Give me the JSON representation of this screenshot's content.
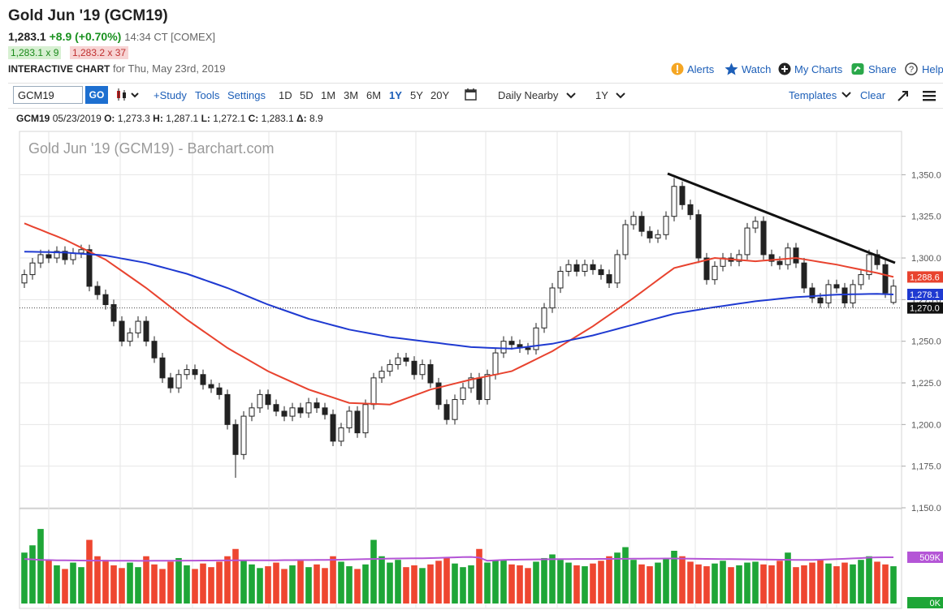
{
  "header": {
    "title": "Gold Jun '19 (GCM19)",
    "last": "1,283.1",
    "change": "+8.9 (+0.70%)",
    "time": "14:34 CT [COMEX]",
    "bid": "1,283.1 x 9",
    "ask": "1,283.2 x 37",
    "chart_label": "INTERACTIVE CHART",
    "date": "for Thu, May 23rd, 2019",
    "links": [
      "Alerts",
      "Watch",
      "My Charts",
      "Share",
      "Help"
    ]
  },
  "toolbar": {
    "symbol": "GCM19",
    "go": "GO",
    "study": "+Study",
    "tools": "Tools",
    "settings": "Settings",
    "ranges": [
      "1D",
      "5D",
      "1M",
      "3M",
      "6M",
      "1Y",
      "5Y",
      "20Y"
    ],
    "aggregation": "Daily Nearby",
    "period": "1Y",
    "templates": "Templates",
    "clear": "Clear"
  },
  "ohlc_bar": {
    "symbol": "GCM19",
    "date": "05/23/2019",
    "items": [
      {
        "key": "O:",
        "value": "1,273.3"
      },
      {
        "key": "H:",
        "value": "1,287.1"
      },
      {
        "key": "L:",
        "value": "1,272.1"
      },
      {
        "key": "C:",
        "value": "1,283.1"
      },
      {
        "key": "Δ:",
        "value": "8.9"
      }
    ]
  },
  "chart_data": {
    "type": "candlestick",
    "title": "Gold Jun '19 (GCM19) - Barchart.com",
    "open": [
      1285,
      1290,
      1297,
      1302,
      1300,
      1304,
      1299,
      1303,
      1305,
      1283,
      1278,
      1272,
      1262,
      1250,
      1255,
      1262,
      1250,
      1240,
      1228,
      1222,
      1230,
      1233,
      1230,
      1224,
      1222,
      1218,
      1200,
      1182,
      1205,
      1210,
      1218,
      1212,
      1208,
      1205,
      1210,
      1207,
      1213,
      1210,
      1206,
      1190,
      1198,
      1208,
      1195,
      1212,
      1228,
      1232,
      1236,
      1240,
      1238,
      1230,
      1236,
      1225,
      1212,
      1203,
      1215,
      1222,
      1228,
      1215,
      1230,
      1243,
      1250,
      1248,
      1246,
      1245,
      1258,
      1270,
      1282,
      1292,
      1296,
      1292,
      1296,
      1293,
      1290,
      1285,
      1302,
      1320,
      1325,
      1316,
      1312,
      1314,
      1325,
      1343,
      1332,
      1326,
      1300,
      1287,
      1295,
      1300,
      1298,
      1302,
      1318,
      1322,
      1302,
      1298,
      1296,
      1306,
      1297,
      1282,
      1276,
      1273,
      1284,
      1282,
      1273,
      1284,
      1290,
      1302,
      1296,
      1273.3
    ],
    "high": [
      1293,
      1300,
      1305,
      1305,
      1307,
      1307,
      1306,
      1308,
      1308,
      1286,
      1281,
      1275,
      1265,
      1258,
      1265,
      1265,
      1253,
      1243,
      1231,
      1233,
      1236,
      1236,
      1233,
      1227,
      1225,
      1221,
      1203,
      1208,
      1213,
      1221,
      1221,
      1215,
      1211,
      1213,
      1213,
      1216,
      1216,
      1213,
      1209,
      1201,
      1211,
      1211,
      1215,
      1231,
      1235,
      1239,
      1243,
      1243,
      1241,
      1239,
      1239,
      1228,
      1215,
      1218,
      1225,
      1231,
      1231,
      1233,
      1246,
      1253,
      1253,
      1251,
      1249,
      1261,
      1273,
      1285,
      1295,
      1299,
      1299,
      1299,
      1299,
      1296,
      1293,
      1305,
      1323,
      1328,
      1328,
      1319,
      1317,
      1328,
      1348,
      1346,
      1335,
      1329,
      1303,
      1298,
      1303,
      1303,
      1305,
      1321,
      1325,
      1325,
      1305,
      1301,
      1309,
      1309,
      1300,
      1285,
      1279,
      1287,
      1287,
      1285,
      1287,
      1293,
      1305,
      1305,
      1299,
      1287.1
    ],
    "low": [
      1282,
      1287,
      1294,
      1297,
      1297,
      1296,
      1296,
      1300,
      1280,
      1275,
      1269,
      1259,
      1247,
      1247,
      1252,
      1247,
      1237,
      1225,
      1219,
      1219,
      1227,
      1227,
      1221,
      1219,
      1215,
      1197,
      1168,
      1179,
      1202,
      1207,
      1209,
      1205,
      1202,
      1202,
      1204,
      1204,
      1207,
      1203,
      1187,
      1187,
      1195,
      1192,
      1192,
      1209,
      1225,
      1229,
      1233,
      1235,
      1227,
      1227,
      1222,
      1209,
      1200,
      1200,
      1212,
      1219,
      1212,
      1212,
      1227,
      1240,
      1245,
      1243,
      1242,
      1242,
      1255,
      1267,
      1279,
      1289,
      1289,
      1289,
      1290,
      1287,
      1282,
      1282,
      1299,
      1317,
      1313,
      1309,
      1309,
      1311,
      1322,
      1329,
      1323,
      1297,
      1284,
      1284,
      1292,
      1295,
      1295,
      1299,
      1315,
      1299,
      1295,
      1293,
      1293,
      1294,
      1279,
      1273,
      1270,
      1270,
      1279,
      1270,
      1270,
      1281,
      1287,
      1293,
      1276,
      1272.1
    ],
    "close": [
      1290,
      1297,
      1302,
      1300,
      1304,
      1299,
      1303,
      1305,
      1283,
      1278,
      1272,
      1262,
      1250,
      1255,
      1262,
      1250,
      1240,
      1228,
      1222,
      1230,
      1233,
      1230,
      1224,
      1222,
      1218,
      1200,
      1182,
      1205,
      1210,
      1218,
      1212,
      1208,
      1205,
      1210,
      1207,
      1213,
      1210,
      1206,
      1190,
      1198,
      1208,
      1195,
      1212,
      1228,
      1232,
      1236,
      1240,
      1238,
      1230,
      1236,
      1225,
      1212,
      1203,
      1215,
      1222,
      1228,
      1215,
      1230,
      1243,
      1250,
      1248,
      1246,
      1245,
      1258,
      1270,
      1282,
      1292,
      1296,
      1292,
      1296,
      1293,
      1290,
      1285,
      1302,
      1320,
      1325,
      1316,
      1312,
      1314,
      1325,
      1343,
      1332,
      1326,
      1300,
      1287,
      1295,
      1300,
      1298,
      1302,
      1318,
      1322,
      1302,
      1298,
      1296,
      1306,
      1297,
      1282,
      1276,
      1273,
      1284,
      1282,
      1273,
      1284,
      1290,
      1302,
      1296,
      1279,
      1283.1
    ],
    "up_color": "#ffffff",
    "down_color": "#222222",
    "series": [
      {
        "color": "#e8432f",
        "end_label": "1,288.6",
        "values": [
          1320.8,
          1318.8,
          1316.9,
          1314.9,
          1313.0,
          1311,
          1308.6,
          1306.2,
          1303.8,
          1301.4,
          1299,
          1295.6,
          1292.2,
          1288.8,
          1285.4,
          1282,
          1278.2,
          1274.4,
          1270.6,
          1266.8,
          1263,
          1259.6,
          1256.2,
          1252.8,
          1249.4,
          1246,
          1243.2,
          1240.4,
          1237.6,
          1234.8,
          1232,
          1229.8,
          1227.6,
          1225.4,
          1223.2,
          1221,
          1219.4,
          1217.8,
          1216.2,
          1214.6,
          1213,
          1212.8,
          1212.6,
          1212.4,
          1212.2,
          1212,
          1213.8,
          1215.6,
          1217.4,
          1219.2,
          1221,
          1222.2,
          1223.4,
          1224.6,
          1225.8,
          1227,
          1228,
          1229,
          1230,
          1231,
          1232,
          1234.4,
          1236.8,
          1239.2,
          1241.6,
          1244,
          1247,
          1250,
          1253,
          1256,
          1259,
          1262.4,
          1265.8,
          1269.2,
          1272.6,
          1276,
          1279.6,
          1283.2,
          1286.8,
          1290.4,
          1294,
          1295.2,
          1296.4,
          1297.6,
          1298.8,
          1300,
          1299.6,
          1299.2,
          1298.8,
          1298.4,
          1298,
          1298.4,
          1298.8,
          1299.2,
          1299.6,
          1300,
          1299.2,
          1298.4,
          1297.6,
          1296.8,
          1296,
          1295,
          1294,
          1293,
          1292,
          1291,
          1289.8,
          1288.6
        ]
      },
      {
        "color": "#1f3ad1",
        "end_label": "1,278.1",
        "values": [
          1303.8,
          1303.7,
          1303.6,
          1303.5,
          1303.4,
          1303.3,
          1302.9,
          1302.6,
          1302.2,
          1301.9,
          1301.5,
          1300.6,
          1299.7,
          1298.8,
          1297.9,
          1297,
          1295.7,
          1294.4,
          1293.1,
          1291.8,
          1290.5,
          1288.8,
          1287.1,
          1285.4,
          1283.7,
          1282,
          1280,
          1278,
          1276,
          1274,
          1272,
          1270.3,
          1268.6,
          1266.9,
          1265.2,
          1263.5,
          1262.2,
          1260.9,
          1259.6,
          1258.3,
          1257,
          1256.1,
          1255.2,
          1254.3,
          1253.4,
          1252.5,
          1251.9,
          1251.3,
          1250.7,
          1250.1,
          1249.5,
          1248.9,
          1248.3,
          1247.7,
          1247.1,
          1246.5,
          1246.3,
          1246.1,
          1245.9,
          1245.7,
          1245.5,
          1246.1,
          1246.7,
          1247.3,
          1247.9,
          1248.5,
          1249.5,
          1250.5,
          1251.5,
          1252.5,
          1253.5,
          1254.8,
          1256.1,
          1257.4,
          1258.7,
          1260,
          1261.3,
          1262.6,
          1263.9,
          1265.2,
          1266.5,
          1267.3,
          1268.1,
          1268.9,
          1269.7,
          1270.5,
          1271.2,
          1271.9,
          1272.6,
          1273.3,
          1274,
          1274.5,
          1275,
          1275.5,
          1276,
          1276.5,
          1276.8,
          1277.1,
          1277.4,
          1277.7,
          1278,
          1278.1,
          1278.2,
          1278.3,
          1278.4,
          1278.5,
          1278.3,
          1278.1
        ]
      }
    ],
    "price_line": {
      "value": 1270,
      "label": "1,270.0"
    },
    "ylim": [
      1150,
      1376
    ],
    "yticks": [
      {
        "value": 1150,
        "label": "1,150.0"
      },
      {
        "value": 1175,
        "label": "1,175.0"
      },
      {
        "value": 1200,
        "label": "1,200.0"
      },
      {
        "value": 1225,
        "label": "1,225.0"
      },
      {
        "value": 1250,
        "label": "1,250.0"
      },
      {
        "value": 1275,
        "label": "1,275.0"
      },
      {
        "value": 1300,
        "label": "1,300.0"
      },
      {
        "value": 1325,
        "label": "1,325.0"
      },
      {
        "value": 1350,
        "label": "1,350.0"
      }
    ],
    "grid": true,
    "volume": {
      "up_color": "#1ea637",
      "down_color": "#ee4630",
      "ma_color": "#b455d6",
      "values": [
        560,
        640,
        820,
        480,
        420,
        380,
        450,
        400,
        700,
        520,
        480,
        420,
        390,
        450,
        400,
        520,
        430,
        380,
        460,
        500,
        420,
        380,
        440,
        400,
        460,
        520,
        600,
        480,
        430,
        390,
        410,
        450,
        380,
        420,
        470,
        400,
        430,
        390,
        520,
        460,
        410,
        380,
        430,
        700,
        520,
        450,
        480,
        400,
        420,
        390,
        430,
        470,
        510,
        440,
        400,
        420,
        600,
        450,
        480,
        480,
        430,
        420,
        390,
        460,
        500,
        540,
        480,
        450,
        420,
        410,
        440,
        470,
        520,
        560,
        620,
        480,
        430,
        410,
        450,
        500,
        580,
        520,
        460,
        430,
        410,
        440,
        470,
        400,
        420,
        450,
        460,
        430,
        420,
        470,
        560,
        400,
        420,
        450,
        480,
        440,
        410,
        450,
        430,
        480,
        520,
        460,
        430,
        410
      ],
      "ma": [
        490,
        485,
        480,
        478,
        476,
        475,
        474,
        473,
        472,
        472,
        471,
        470,
        470,
        470,
        469,
        469,
        470,
        470,
        471,
        471,
        472,
        472,
        473,
        473,
        474,
        474,
        475,
        475,
        476,
        476,
        476,
        476,
        477,
        477,
        478,
        478,
        479,
        480,
        481,
        482,
        484,
        486,
        488,
        490,
        492,
        494,
        495,
        496,
        497,
        498,
        500,
        502,
        505,
        508,
        510,
        512,
        505,
        470,
        475,
        480,
        482,
        483,
        484,
        485,
        486,
        487,
        488,
        489,
        490,
        490,
        490,
        491,
        491,
        492,
        492,
        493,
        493,
        494,
        494,
        495,
        495,
        494,
        493,
        492,
        491,
        490,
        489,
        488,
        487,
        486,
        485,
        484,
        483,
        482,
        481,
        480,
        479,
        480,
        482,
        485,
        488,
        492,
        496,
        500,
        505,
        508,
        509,
        509
      ],
      "ylim": [
        0,
        1035
      ],
      "yticks": [
        {
          "value": 0,
          "label": "0K"
        },
        {
          "value": 509,
          "label": "509K"
        }
      ]
    }
  }
}
